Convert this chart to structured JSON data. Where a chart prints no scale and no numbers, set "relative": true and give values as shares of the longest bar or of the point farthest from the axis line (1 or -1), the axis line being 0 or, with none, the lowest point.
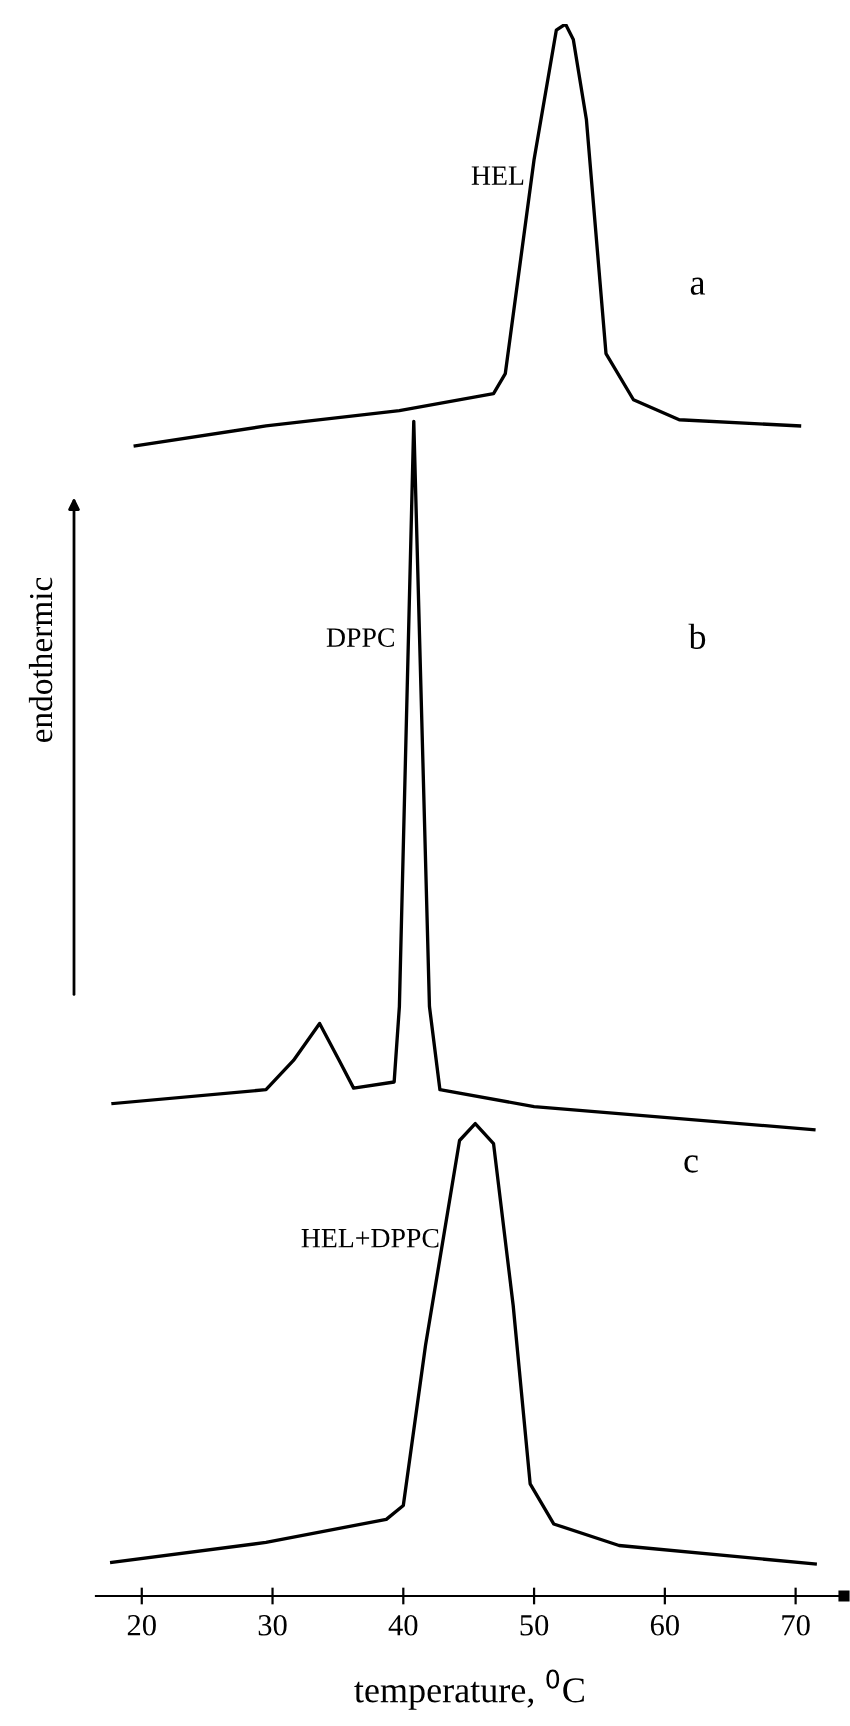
{
  "chart_data": {
    "type": "line",
    "relative": true,
    "xlabel": "temperature, $^{0}$C",
    "ylabel": "endothermic",
    "xlim": [
      16.5,
      73.7
    ],
    "xticks": [
      20,
      30,
      40,
      50,
      60,
      70
    ],
    "grid": false,
    "legend": false,
    "marker": "none",
    "line_style": "solid",
    "annotations": [
      "a",
      "b",
      "c"
    ],
    "series": [
      {
        "name": "HEL",
        "color": "#000000",
        "x": [
          19.5,
          29.5,
          39.7,
          46.9,
          47.8,
          50,
          51.7,
          52.4,
          53,
          54,
          55.5,
          57.6,
          61.1,
          70.3
        ],
        "values": [
          0.726,
          0.739,
          0.749,
          0.76,
          0.773,
          0.912,
          0.996,
          1,
          0.99,
          0.938,
          0.786,
          0.756,
          0.743,
          0.739
        ]
      },
      {
        "name": "DPPC",
        "color": "#000000",
        "x": [
          17.8,
          29.5,
          31.6,
          33.6,
          35.1,
          36.2,
          39.3,
          39.7,
          40.8,
          42,
          42.8,
          50,
          71.4
        ],
        "values": [
          0.299,
          0.308,
          0.327,
          0.351,
          0.327,
          0.309,
          0.313,
          0.362,
          0.742,
          0.362,
          0.308,
          0.297,
          0.282
        ]
      },
      {
        "name": "HEL+DPPC",
        "color": "#000000",
        "x": [
          17.7,
          29.5,
          38.7,
          40,
          41.7,
          44.3,
          45.5,
          46.9,
          48.4,
          49.7,
          51.5,
          56.5,
          71.5
        ],
        "values": [
          0.001,
          0.014,
          0.029,
          0.038,
          0.142,
          0.275,
          0.286,
          0.273,
          0.168,
          0.052,
          0.026,
          0.012,
          0
        ]
      }
    ]
  }
}
